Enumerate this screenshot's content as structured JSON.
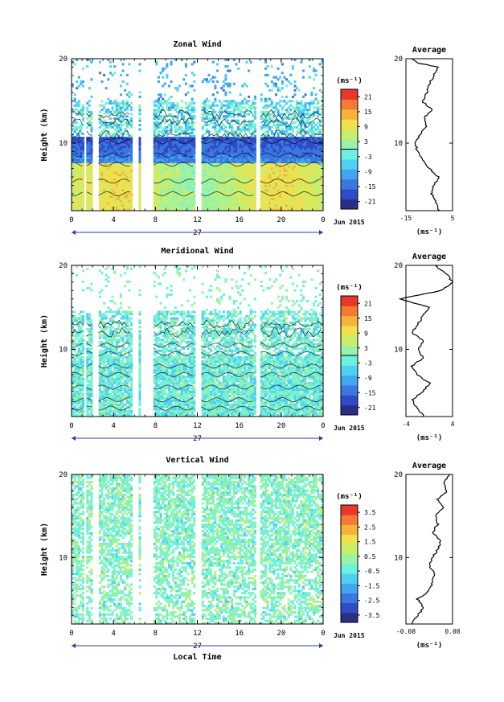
{
  "chart_data": [
    {
      "type": "heatmap",
      "title": "Zonal Wind",
      "ylabel": "Height (km)",
      "xlabel": "",
      "unit_label": "(ms⁻¹)",
      "x_ticks": [
        "0",
        "4",
        "8",
        "12",
        "16",
        "20",
        "0"
      ],
      "y_ticks": [
        "20",
        "10"
      ],
      "day_label": "27",
      "date_label": "Jun 2015",
      "colorbar": {
        "min": -24,
        "max": 24,
        "ticks": [
          "21",
          "15",
          "9",
          "3",
          "-3",
          "-9",
          "-15",
          "-21"
        ],
        "zero_line": 0
      },
      "xlim": [
        0,
        24
      ],
      "ylim": [
        2,
        20
      ],
      "average": {
        "title": "Average",
        "xlim": [
          -15,
          5
        ],
        "x_ticks": [
          "-15",
          "5"
        ],
        "unit_label": "(ms⁻¹)"
      },
      "gaps": [
        [
          1.1,
          1.4
        ],
        [
          2.0,
          2.5
        ],
        [
          5.8,
          6.3
        ],
        [
          6.5,
          7.8
        ],
        [
          11.7,
          12.3
        ],
        [
          17.6,
          18.0
        ]
      ],
      "profile": {
        "heights": [
          2,
          3,
          4,
          5,
          6,
          7,
          8,
          9,
          10,
          11,
          12,
          13,
          14,
          15,
          16,
          17,
          18,
          19,
          19.5,
          20
        ],
        "values": [
          -1,
          -2,
          -4,
          -3,
          -1,
          -5,
          -8,
          -10,
          -11,
          -9,
          -6,
          -7,
          -4,
          -8,
          -6,
          -5,
          -3,
          -1,
          -10,
          -12
        ]
      }
    },
    {
      "type": "heatmap",
      "title": "Meridional Wind",
      "ylabel": "Height (km)",
      "xlabel": "",
      "unit_label": "(ms⁻¹)",
      "x_ticks": [
        "0",
        "4",
        "8",
        "12",
        "16",
        "20",
        "0"
      ],
      "y_ticks": [
        "20",
        "10"
      ],
      "day_label": "27",
      "date_label": "Jun 2015",
      "colorbar": {
        "min": -24,
        "max": 24,
        "ticks": [
          "21",
          "15",
          "9",
          "3",
          "-3",
          "-9",
          "-15",
          "-21"
        ],
        "zero_line": 0
      },
      "xlim": [
        0,
        24
      ],
      "ylim": [
        2,
        20
      ],
      "average": {
        "title": "Average",
        "xlim": [
          -4,
          4
        ],
        "x_ticks": [
          "-4",
          "4"
        ],
        "unit_label": "(ms⁻¹)"
      },
      "gaps": [
        [
          1.1,
          1.4
        ],
        [
          2.0,
          2.5
        ],
        [
          5.8,
          6.3
        ],
        [
          6.5,
          7.8
        ],
        [
          11.7,
          12.3
        ],
        [
          17.6,
          18.0
        ]
      ],
      "profile": {
        "heights": [
          2,
          3,
          4,
          5,
          6,
          7,
          8,
          9,
          10,
          11,
          12,
          13,
          14,
          15,
          16,
          17,
          18,
          19,
          20
        ],
        "values": [
          -1,
          -2,
          -3,
          -1,
          0,
          -2,
          -3,
          -1,
          -2,
          -1,
          -3,
          -2,
          -1,
          0,
          -5,
          2,
          4,
          3,
          1
        ]
      }
    },
    {
      "type": "heatmap",
      "title": "Vertical Wind",
      "ylabel": "Height (km)",
      "xlabel": "Local Time",
      "unit_label": "(ms⁻¹)",
      "x_ticks": [
        "0",
        "4",
        "8",
        "12",
        "16",
        "20",
        "0"
      ],
      "y_ticks": [
        "20",
        "10"
      ],
      "day_label": "27",
      "date_label": "Jun 2015",
      "colorbar": {
        "min": -4,
        "max": 4,
        "ticks": [
          "3.5",
          "2.5",
          "1.5",
          "0.5",
          "-0.5",
          "-1.5",
          "-2.5",
          "-3.5"
        ],
        "zero_line": null
      },
      "xlim": [
        0,
        24
      ],
      "ylim": [
        2,
        20
      ],
      "average": {
        "title": "Average",
        "xlim": [
          -0.08,
          0.08
        ],
        "x_ticks": [
          "-0.08",
          "0.08"
        ],
        "unit_label": "(ms⁻¹)"
      },
      "gaps": [
        [
          1.1,
          1.4
        ],
        [
          2.0,
          2.5
        ],
        [
          5.8,
          6.3
        ],
        [
          6.5,
          7.8
        ],
        [
          11.7,
          12.3
        ],
        [
          17.6,
          18.0
        ]
      ],
      "profile": {
        "heights": [
          2,
          3,
          4,
          5,
          6,
          7,
          8,
          9,
          10,
          11,
          12,
          13,
          14,
          15,
          16,
          17,
          18,
          19,
          20
        ],
        "values": [
          -0.06,
          -0.04,
          -0.02,
          -0.04,
          0.0,
          0.01,
          0.02,
          0.0,
          0.01,
          0.03,
          0.04,
          0.01,
          0.03,
          0.02,
          0.05,
          0.03,
          0.06,
          0.05,
          0.07
        ]
      }
    }
  ]
}
